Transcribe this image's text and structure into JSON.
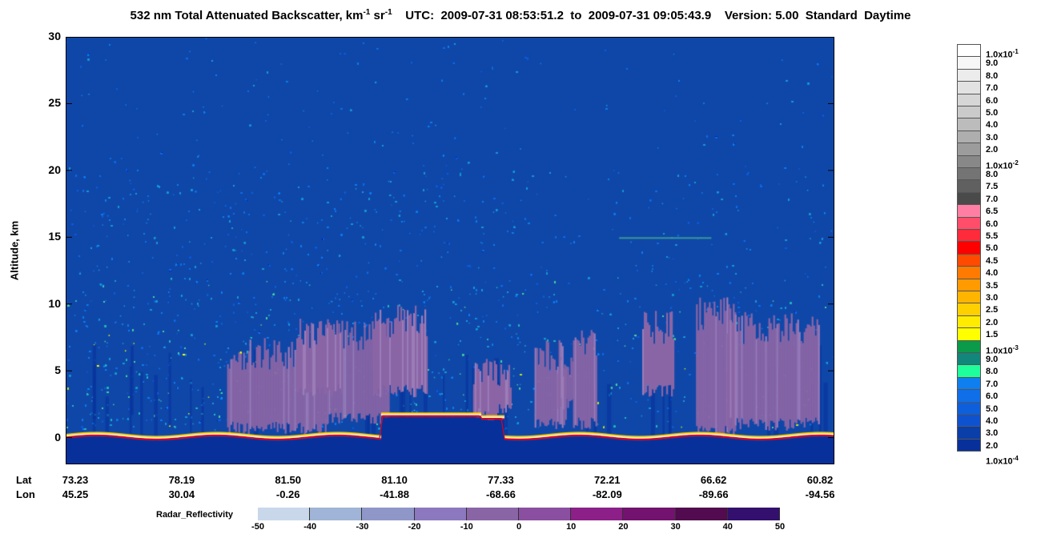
{
  "title": {
    "pre": "532 nm Total Attenuated Backscatter, km",
    "exp1": "-1",
    "mid": " sr",
    "exp2": "-1",
    "post": "    UTC:  2009-07-31 08:53:51.2  to  2009-07-31 09:05:43.9    Version: 5.00  Standard  Daytime"
  },
  "colors": {
    "background_blue": "#0f47a8",
    "surface_red": "#e0001a",
    "cloud_purple": "#8a65a6"
  },
  "chart_data": {
    "type": "heatmap",
    "ylabel": "Altitude, km",
    "ylim": [
      -2,
      30
    ],
    "yticks": [
      "30",
      "25",
      "20",
      "15",
      "10",
      "5",
      "0"
    ],
    "ytick_values": [
      30,
      25,
      20,
      15,
      10,
      5,
      0
    ],
    "x_labels": {
      "lat_label": "Lat",
      "lon_label": "Lon",
      "lat": [
        "73.23",
        "78.19",
        "81.50",
        "81.10",
        "77.33",
        "72.21",
        "66.62",
        "60.82"
      ],
      "lon": [
        "45.25",
        "30.04",
        "-0.26",
        "-41.88",
        "-68.66",
        "-82.09",
        "-89.66",
        "-94.56"
      ]
    },
    "colorbar": {
      "labels": [
        {
          "base": "1.0x10",
          "exp": "-1"
        },
        {
          "base": "9.0"
        },
        {
          "base": "8.0"
        },
        {
          "base": "7.0"
        },
        {
          "base": "6.0"
        },
        {
          "base": "5.0"
        },
        {
          "base": "4.0"
        },
        {
          "base": "3.0"
        },
        {
          "base": "2.0"
        },
        {
          "base": "1.0x10",
          "exp": "-2"
        },
        {
          "base": "8.0"
        },
        {
          "base": "7.5"
        },
        {
          "base": "7.0"
        },
        {
          "base": "6.5"
        },
        {
          "base": "6.0"
        },
        {
          "base": "5.5"
        },
        {
          "base": "5.0"
        },
        {
          "base": "4.5"
        },
        {
          "base": "4.0"
        },
        {
          "base": "3.5"
        },
        {
          "base": "3.0"
        },
        {
          "base": "2.5"
        },
        {
          "base": "2.0"
        },
        {
          "base": "1.5"
        },
        {
          "base": "1.0x10",
          "exp": "-3"
        },
        {
          "base": "9.0"
        },
        {
          "base": "8.0"
        },
        {
          "base": "7.0"
        },
        {
          "base": "6.0"
        },
        {
          "base": "5.0"
        },
        {
          "base": "4.0"
        },
        {
          "base": "3.0"
        },
        {
          "base": "2.0"
        },
        {
          "base": "1.0x10",
          "exp": "-4"
        }
      ],
      "segment_colors": [
        "#ffffff",
        "#f6f6f6",
        "#ececec",
        "#e2e2e2",
        "#d6d6d6",
        "#cacaca",
        "#bcbcbc",
        "#aeaeae",
        "#9c9c9c",
        "#888888",
        "#747474",
        "#606060",
        "#4a4a4a",
        "#ff7fa4",
        "#ff4d6a",
        "#ff2a3a",
        "#ff0000",
        "#ff4a00",
        "#ff7a00",
        "#ff9a00",
        "#ffb400",
        "#ffd000",
        "#ffec00",
        "#ffff00",
        "#0a9a4a",
        "#12867a",
        "#1eff9c",
        "#0f7ff0",
        "#0f6fe8",
        "#0e5fdc",
        "#0e52d0",
        "#0a3ea8",
        "#08309a"
      ]
    },
    "radar_reflectivity": {
      "label": "Radar_Reflectivity",
      "ticks": [
        "-50",
        "-40",
        "-30",
        "-20",
        "-10",
        "0",
        "10",
        "20",
        "30",
        "40",
        "50"
      ],
      "colors": [
        "#c9d7ea",
        "#9fb4d6",
        "#8f97c9",
        "#8b78bf",
        "#8a65a6",
        "#8a4fa0",
        "#8c1f88",
        "#74126f",
        "#520b4e",
        "#33106e"
      ]
    }
  }
}
